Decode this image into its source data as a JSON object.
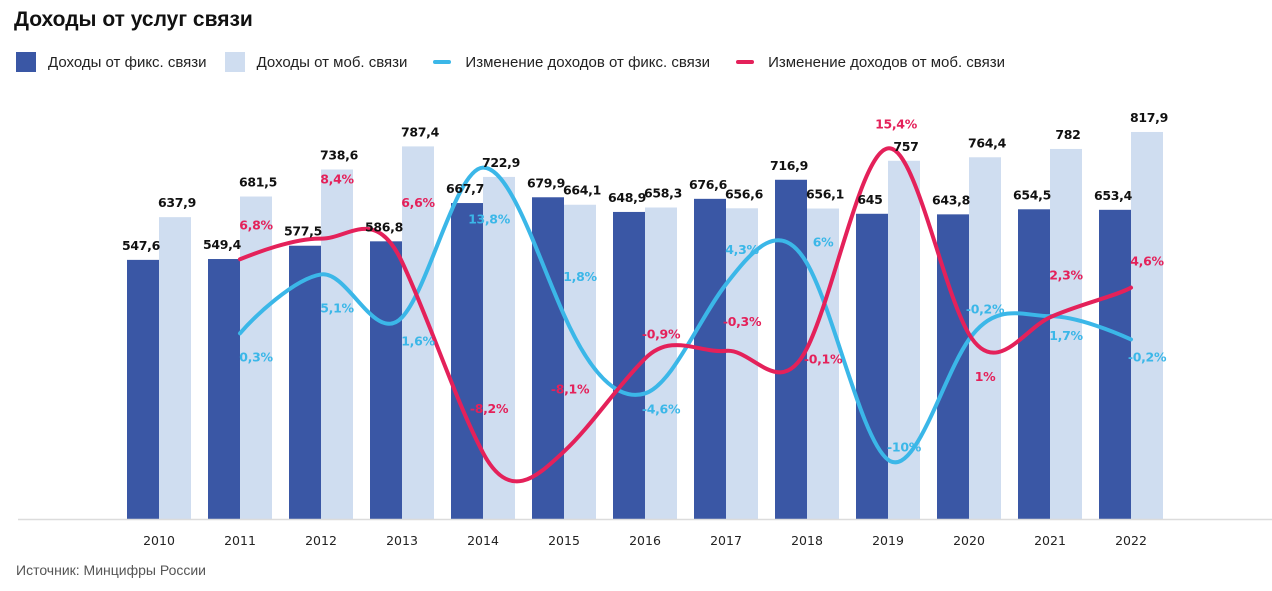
{
  "page": {
    "title": "Доходы от услуг связи",
    "source": "Источник: Минцифры России"
  },
  "legend": [
    {
      "label": "Доходы от фикс. связи",
      "kind": "box",
      "color": "#3A57A5"
    },
    {
      "label": "Доходы от моб. связи",
      "kind": "box",
      "color": "#CFDDF0"
    },
    {
      "label": "Изменение доходов от фикс. связи",
      "kind": "line",
      "color": "#3BB7E8"
    },
    {
      "label": "Изменение доходов от моб. связи",
      "kind": "line",
      "color": "#E4215A"
    }
  ],
  "chart_data": {
    "type": "bar",
    "title": "Доходы от услуг связи",
    "xlabel": "",
    "ylabel": "",
    "grid": false,
    "legend_position": "top-left",
    "categories": [
      "2010",
      "2011",
      "2012",
      "2013",
      "2014",
      "2015",
      "2016",
      "2017",
      "2018",
      "2019",
      "2020",
      "2021",
      "2022"
    ],
    "series": [
      {
        "name": "Доходы от фикс. связи",
        "type": "bar",
        "color": "#3A57A5",
        "values": [
          547.6,
          549.4,
          577.5,
          586.8,
          667.7,
          679.9,
          648.9,
          676.6,
          716.9,
          645,
          643.8,
          654.5,
          653.4
        ],
        "labels": [
          "547,6",
          "549,4",
          "577,5",
          "586,8",
          "667,7",
          "679,9",
          "648,9",
          "676,6",
          "716,9",
          "645",
          "643,8",
          "654,5",
          "653,4"
        ]
      },
      {
        "name": "Доходы от моб. связи",
        "type": "bar",
        "color": "#CFDDF0",
        "values": [
          637.9,
          681.5,
          738.6,
          787.4,
          722.9,
          664.1,
          658.3,
          656.6,
          656.1,
          757,
          764.4,
          782,
          817.9
        ],
        "labels": [
          "637,9",
          "681,5",
          "738,6",
          "787,4",
          "722,9",
          "664,1",
          "658,3",
          "656,6",
          "656,1",
          "757",
          "764,4",
          "782",
          "817,9"
        ]
      },
      {
        "name": "Изменение доходов от фикс. связи",
        "type": "line",
        "color": "#3BB7E8",
        "unit": "%",
        "values": [
          null,
          0.3,
          5.1,
          1.6,
          13.8,
          1.8,
          -4.6,
          4.3,
          6,
          -10,
          -0.2,
          1.7,
          -0.2
        ],
        "labels": [
          null,
          "0,3%",
          "5,1%",
          "1,6%",
          "13,8%",
          "1,8%",
          "-4,6%",
          "4,3%",
          "6%",
          "-10%",
          "-0,2%",
          "1,7%",
          "-0,2%"
        ]
      },
      {
        "name": "Изменение доходов от моб. связи",
        "type": "line",
        "color": "#E4215A",
        "unit": "%",
        "values": [
          null,
          6.8,
          8.4,
          6.6,
          -8.2,
          -8.1,
          -0.9,
          -0.3,
          -0.1,
          15.4,
          1,
          2.3,
          4.6
        ],
        "labels": [
          null,
          "6,8%",
          "8,4%",
          "6,6%",
          "-8,2%",
          "-8,1%",
          "-0,9%",
          "-0,3%",
          "-0,1%",
          "15,4%",
          "1%",
          "2,3%",
          "4,6%"
        ]
      }
    ],
    "ylim": [
      0,
      850
    ]
  }
}
